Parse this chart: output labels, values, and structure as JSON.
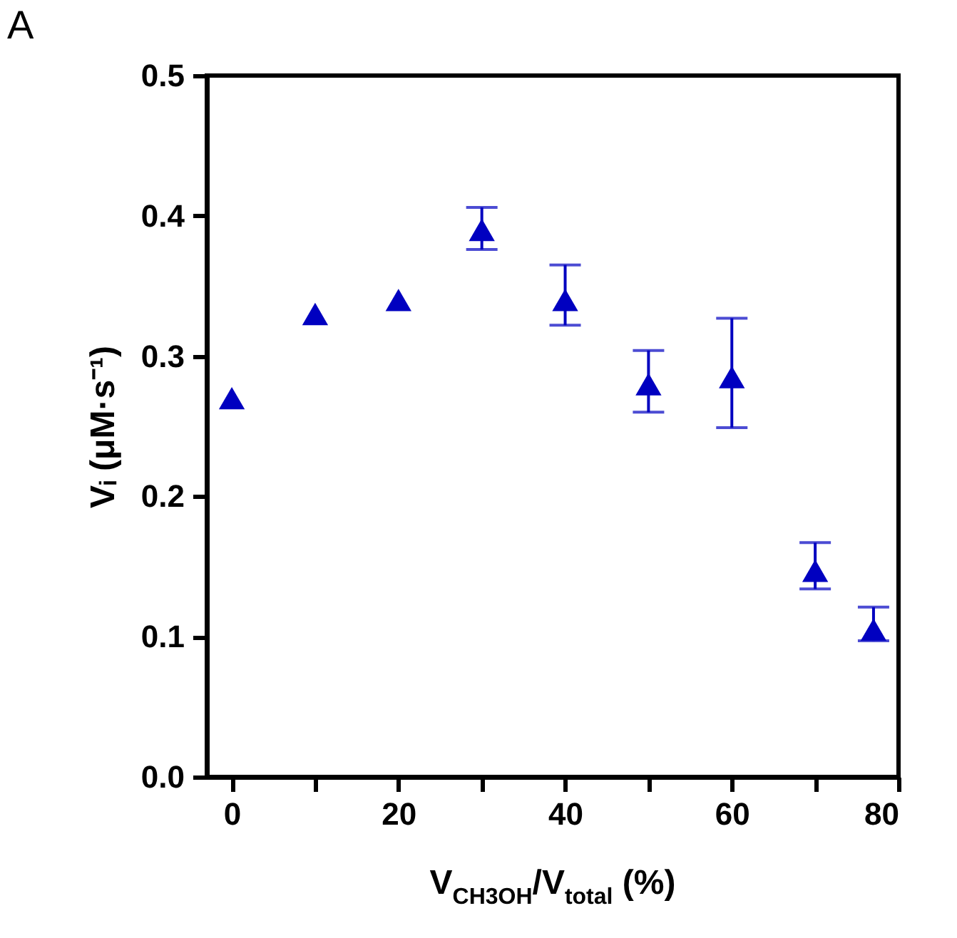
{
  "chart_data": {
    "type": "scatter",
    "xlabel": "V$_{CH3OH}$/V$_{total}$ (%)",
    "ylabel": "Vᵢ (μM·s⁻¹)",
    "annotations": [
      "A"
    ],
    "x": [
      0,
      10,
      20,
      30,
      40,
      50,
      60,
      70,
      77
    ],
    "series": [
      {
        "color": "#0000c0",
        "values": [
          0.27,
          0.33,
          0.34,
          0.39,
          0.34,
          0.28,
          0.285,
          0.147,
          0.105
        ],
        "errors": [
          null,
          null,
          null,
          [
            0.376,
            0.406
          ],
          [
            0.322,
            0.365
          ],
          [
            0.26,
            0.304
          ],
          [
            0.249,
            0.327
          ],
          [
            0.134,
            0.167
          ],
          [
            0.097,
            0.121
          ]
        ]
      }
    ],
    "marker": "triangle",
    "xlim": [
      -3,
      80
    ],
    "xticks": [
      0,
      {
        "value": 10,
        "label": null
      },
      20,
      {
        "value": 30,
        "label": null
      },
      40,
      {
        "value": 50,
        "label": null
      },
      60,
      {
        "value": 70,
        "label": null
      },
      80
    ],
    "ylim": [
      0,
      0.5
    ],
    "yticks": [
      {
        "value": 0,
        "label": "0.0"
      },
      {
        "value": 0.1,
        "label": "0.1"
      },
      {
        "value": 0.2,
        "label": "0.2"
      },
      {
        "value": 0.3,
        "label": "0.3"
      },
      {
        "value": 0.4,
        "label": "0.4"
      },
      {
        "value": 0.5,
        "label": "0.5"
      }
    ],
    "grid": false
  }
}
